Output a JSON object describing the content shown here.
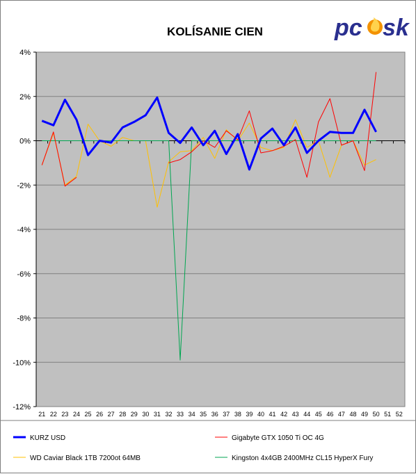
{
  "chart_data": {
    "type": "line",
    "title": "KOLÍSANIE CIEN",
    "ylim": [
      -12,
      4
    ],
    "yticks": [
      4,
      2,
      0,
      -2,
      -4,
      -6,
      -8,
      -10,
      -12
    ],
    "ytick_labels": [
      "4%",
      "2%",
      "0%",
      "-2%",
      "-4%",
      "-6%",
      "-8%",
      "-10%",
      "-12%"
    ],
    "categories": [
      "21",
      "22",
      "23",
      "24",
      "25",
      "26",
      "27",
      "28",
      "29",
      "30",
      "31",
      "32",
      "33",
      "34",
      "35",
      "36",
      "37",
      "38",
      "39",
      "40",
      "41",
      "42",
      "43",
      "44",
      "45",
      "46",
      "47",
      "48",
      "49",
      "50",
      "51",
      "52"
    ],
    "grid": true,
    "legend_position": "bottom",
    "series": [
      {
        "name": "KURZ USD",
        "color": "#0000ff",
        "values": [
          0.9,
          0.7,
          1.85,
          0.95,
          -0.65,
          0.0,
          -0.08,
          0.6,
          0.85,
          1.15,
          1.95,
          0.35,
          -0.1,
          0.6,
          -0.2,
          0.45,
          -0.6,
          0.3,
          -1.3,
          0.1,
          0.55,
          -0.2,
          0.6,
          -0.55,
          0.0,
          0.4,
          0.35,
          0.35,
          1.4,
          0.4,
          null,
          null
        ]
      },
      {
        "name": "Gigabyte GTX 1050 Ti OC 4G",
        "color": "#ff0000",
        "values": [
          -1.1,
          0.4,
          -2.05,
          -1.65,
          null,
          null,
          null,
          null,
          null,
          null,
          null,
          -1.0,
          -0.85,
          -0.5,
          0.0,
          -0.3,
          0.45,
          0.05,
          1.35,
          -0.55,
          -0.45,
          -0.25,
          0.05,
          -1.65,
          0.85,
          1.9,
          -0.2,
          0.0,
          -1.35,
          3.1,
          null,
          null
        ]
      },
      {
        "name": "WD Caviar Black 1TB 7200ot 64MB",
        "color": "#ffc000",
        "values": [
          -1.1,
          0.35,
          -2.0,
          -1.6,
          0.75,
          0.0,
          -0.25,
          0.15,
          0.0,
          0.0,
          -3.0,
          -0.95,
          -0.5,
          -0.45,
          0.15,
          -0.8,
          0.5,
          0.0,
          0.8,
          -0.3,
          -0.45,
          -0.3,
          0.95,
          -0.3,
          0.0,
          -1.65,
          -0.2,
          0.0,
          -1.1,
          -0.85,
          null,
          null
        ]
      },
      {
        "name": "Kingston 4x4GB 2400MHz CL15 HyperX Fury",
        "color": "#00a651",
        "values": [
          0.0,
          0.0,
          0.0,
          0.0,
          0.0,
          0.0,
          0.0,
          0.0,
          0.0,
          0.0,
          0.0,
          0.0,
          -9.9,
          0.0,
          0.0,
          0.0,
          0.0,
          0.0,
          0.0,
          0.0,
          0.0,
          0.0,
          0.0,
          0.0,
          0.0,
          0.0,
          0.0,
          0.0,
          0.0,
          0.0,
          null,
          null
        ]
      }
    ]
  },
  "colors": {
    "plot_background": "#c0c0c0",
    "grid": "#808080",
    "logo_accent": "#f39200",
    "logo_text": "#2a2f8f"
  },
  "logo": {
    "text_pc": "pc",
    "text_sk": "sk",
    "icon": "flame-icon"
  }
}
